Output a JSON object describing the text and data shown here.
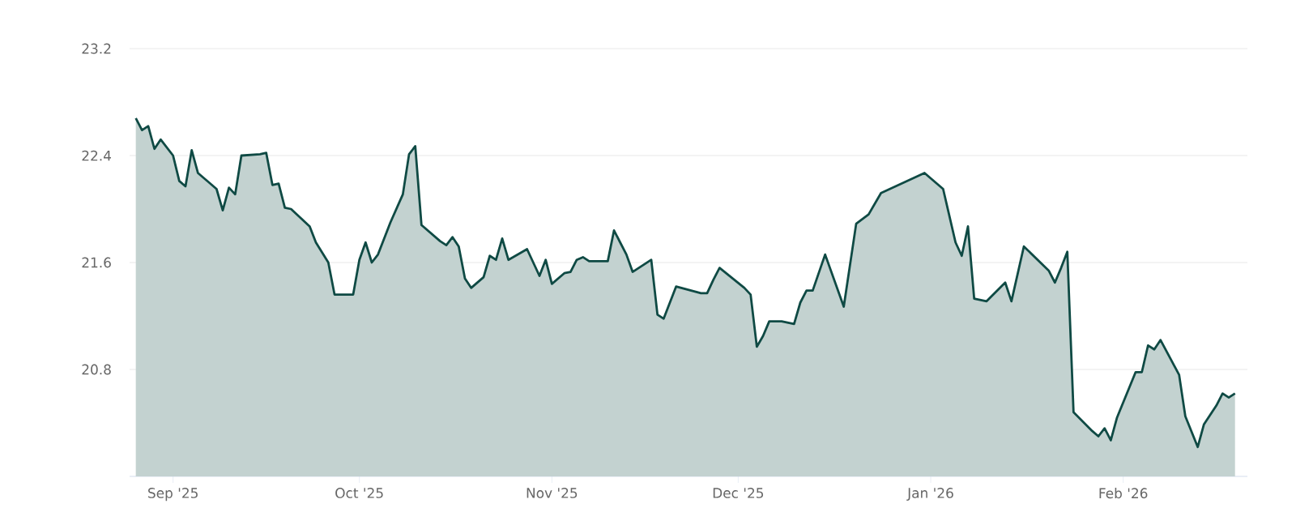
{
  "chart_data": {
    "type": "area",
    "grid": "y",
    "marker": "none",
    "xlim": [
      "2025-08-25",
      "2026-02-21"
    ],
    "ylim": [
      20.0,
      23.2
    ],
    "yticks": [
      20.8,
      21.6,
      22.4,
      23.2
    ],
    "xticks": [
      {
        "value": "2025-09-01",
        "label": "Sep '25"
      },
      {
        "value": "2025-10-01",
        "label": "Oct '25"
      },
      {
        "value": "2025-11-01",
        "label": "Nov '25"
      },
      {
        "value": "2025-12-01",
        "label": "Dec '25"
      },
      {
        "value": "2026-01-01",
        "label": "Jan '26"
      },
      {
        "value": "2026-02-01",
        "label": "Feb '26"
      }
    ],
    "x": [
      "2025-08-26",
      "2025-08-27",
      "2025-08-28",
      "2025-08-29",
      "2025-08-30",
      "2025-09-01",
      "2025-09-02",
      "2025-09-03",
      "2025-09-04",
      "2025-09-05",
      "2025-09-08",
      "2025-09-09",
      "2025-09-10",
      "2025-09-11",
      "2025-09-12",
      "2025-09-15",
      "2025-09-16",
      "2025-09-17",
      "2025-09-18",
      "2025-09-19",
      "2025-09-20",
      "2025-09-23",
      "2025-09-24",
      "2025-09-26",
      "2025-09-27",
      "2025-09-30",
      "2025-10-01",
      "2025-10-02",
      "2025-10-03",
      "2025-10-04",
      "2025-10-06",
      "2025-10-08",
      "2025-10-09",
      "2025-10-10",
      "2025-10-11",
      "2025-10-14",
      "2025-10-15",
      "2025-10-16",
      "2025-10-17",
      "2025-10-18",
      "2025-10-19",
      "2025-10-21",
      "2025-10-22",
      "2025-10-23",
      "2025-10-24",
      "2025-10-25",
      "2025-10-28",
      "2025-10-30",
      "2025-10-31",
      "2025-11-01",
      "2025-11-03",
      "2025-11-04",
      "2025-11-05",
      "2025-11-06",
      "2025-11-07",
      "2025-11-10",
      "2025-11-11",
      "2025-11-13",
      "2025-11-14",
      "2025-11-17",
      "2025-11-18",
      "2025-11-19",
      "2025-11-21",
      "2025-11-25",
      "2025-11-26",
      "2025-11-27",
      "2025-11-28",
      "2025-12-02",
      "2025-12-03",
      "2025-12-04",
      "2025-12-05",
      "2025-12-06",
      "2025-12-08",
      "2025-12-10",
      "2025-12-11",
      "2025-12-12",
      "2025-12-13",
      "2025-12-15",
      "2025-12-18",
      "2025-12-20",
      "2025-12-22",
      "2025-12-24",
      "2025-12-31",
      "2026-01-03",
      "2026-01-05",
      "2026-01-06",
      "2026-01-07",
      "2026-01-08",
      "2026-01-10",
      "2026-01-13",
      "2026-01-14",
      "2026-01-16",
      "2026-01-20",
      "2026-01-21",
      "2026-01-22",
      "2026-01-23",
      "2026-01-24",
      "2026-01-27",
      "2026-01-28",
      "2026-01-29",
      "2026-01-30",
      "2026-01-31",
      "2026-02-03",
      "2026-02-04",
      "2026-02-05",
      "2026-02-06",
      "2026-02-07",
      "2026-02-10",
      "2026-02-11",
      "2026-02-13",
      "2026-02-14",
      "2026-02-16",
      "2026-02-17",
      "2026-02-18",
      "2026-02-19"
    ],
    "series": [
      {
        "color": "#0f4a44",
        "values": [
          22.68,
          22.59,
          22.62,
          22.45,
          22.52,
          22.4,
          22.21,
          22.17,
          22.44,
          22.27,
          22.15,
          21.99,
          22.16,
          22.11,
          22.4,
          22.41,
          22.42,
          22.18,
          22.19,
          22.01,
          22.0,
          21.87,
          21.75,
          21.6,
          21.36,
          21.36,
          21.62,
          21.75,
          21.6,
          21.66,
          21.9,
          22.11,
          22.41,
          22.47,
          21.88,
          21.76,
          21.73,
          21.79,
          21.72,
          21.48,
          21.41,
          21.49,
          21.65,
          21.62,
          21.78,
          21.62,
          21.7,
          21.5,
          21.62,
          21.44,
          21.52,
          21.53,
          21.62,
          21.64,
          21.61,
          21.61,
          21.84,
          21.66,
          21.53,
          21.62,
          21.21,
          21.18,
          21.42,
          21.37,
          21.37,
          21.47,
          21.56,
          21.41,
          21.36,
          20.97,
          21.05,
          21.16,
          21.16,
          21.14,
          21.3,
          21.39,
          21.39,
          21.66,
          21.27,
          21.89,
          21.96,
          22.12,
          22.27,
          22.15,
          21.75,
          21.65,
          21.87,
          21.33,
          21.31,
          21.45,
          21.31,
          21.72,
          21.54,
          21.45,
          21.56,
          21.68,
          20.48,
          20.34,
          20.3,
          20.36,
          20.27,
          20.44,
          20.78,
          20.78,
          20.98,
          20.95,
          21.02,
          20.76,
          20.45,
          20.22,
          20.39,
          20.53,
          20.62,
          20.59,
          20.62
        ]
      }
    ]
  }
}
